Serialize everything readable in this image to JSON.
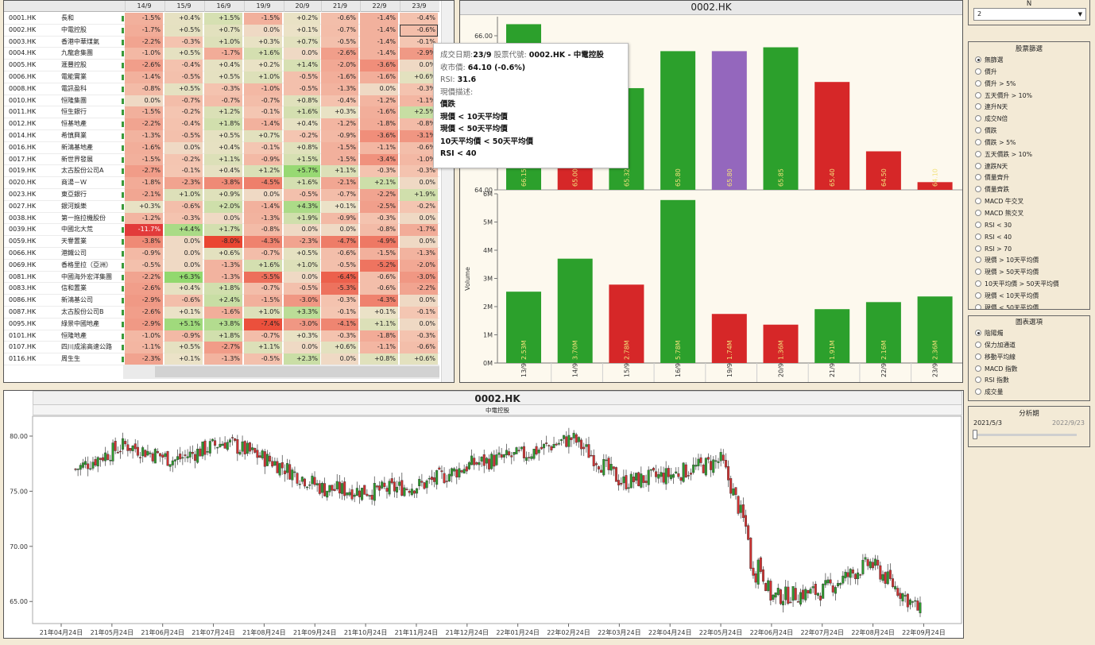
{
  "table": {
    "dates": [
      "14/9",
      "15/9",
      "16/9",
      "19/9",
      "20/9",
      "21/9",
      "22/9",
      "23/9"
    ],
    "rows": [
      {
        "code": "0001.HK",
        "name": "長和",
        "changes": [
          "-1.5%",
          "+0.4%",
          "+1.5%",
          "-1.5%",
          "+0.2%",
          "-0.6%",
          "-1.4%",
          "-0.4%"
        ]
      },
      {
        "code": "0002.HK",
        "name": "中電控股",
        "changes": [
          "-1.7%",
          "+0.5%",
          "+0.7%",
          "0.0%",
          "+0.1%",
          "-0.7%",
          "-1.4%",
          "-0.6%"
        ]
      },
      {
        "code": "0003.HK",
        "name": "香港中華煤氣",
        "changes": [
          "-2.2%",
          "-0.3%",
          "+1.0%",
          "+0.3%",
          "+0.7%",
          "-0.5%",
          "-1.4%",
          "-0.1%"
        ]
      },
      {
        "code": "0004.HK",
        "name": "九龍倉集團",
        "changes": [
          "-1.0%",
          "+0.5%",
          "-1.7%",
          "+1.6%",
          "0.0%",
          "-2.6%",
          "-1.4%",
          "-2.9%"
        ]
      },
      {
        "code": "0005.HK",
        "name": "滙豐控股",
        "changes": [
          "-2.6%",
          "-0.4%",
          "+0.4%",
          "+0.2%",
          "+1.4%",
          "-2.0%",
          "-3.6%",
          "0.0%"
        ]
      },
      {
        "code": "0006.HK",
        "name": "電能實業",
        "changes": [
          "-1.4%",
          "-0.5%",
          "+0.5%",
          "+1.0%",
          "-0.5%",
          "-1.6%",
          "-1.6%",
          "+0.6%"
        ]
      },
      {
        "code": "0008.HK",
        "name": "電訊盈科",
        "changes": [
          "-0.8%",
          "+0.5%",
          "-0.3%",
          "-1.0%",
          "-0.5%",
          "-1.3%",
          "0.0%",
          "-0.3%"
        ]
      },
      {
        "code": "0010.HK",
        "name": "恒隆集團",
        "changes": [
          "0.0%",
          "-0.7%",
          "-0.7%",
          "-0.7%",
          "+0.8%",
          "-0.4%",
          "-1.2%",
          "-1.1%"
        ]
      },
      {
        "code": "0011.HK",
        "name": "恒生銀行",
        "changes": [
          "-1.5%",
          "-0.2%",
          "+1.2%",
          "-0.1%",
          "+1.6%",
          "+0.3%",
          "-1.6%",
          "+2.5%"
        ]
      },
      {
        "code": "0012.HK",
        "name": "恒基地產",
        "changes": [
          "-2.2%",
          "-0.4%",
          "+1.8%",
          "-1.4%",
          "+0.4%",
          "-1.2%",
          "-1.8%",
          "-0.8%"
        ]
      },
      {
        "code": "0014.HK",
        "name": "希慎興業",
        "changes": [
          "-1.3%",
          "-0.5%",
          "+0.5%",
          "+0.7%",
          "-0.2%",
          "-0.9%",
          "-3.6%",
          "-3.1%"
        ]
      },
      {
        "code": "0016.HK",
        "name": "新鴻基地產",
        "changes": [
          "-1.6%",
          "0.0%",
          "+0.4%",
          "-0.1%",
          "+0.8%",
          "-1.5%",
          "-1.1%",
          "-0.6%"
        ]
      },
      {
        "code": "0017.HK",
        "name": "新世界發展",
        "changes": [
          "-1.5%",
          "-0.2%",
          "+1.1%",
          "-0.9%",
          "+1.5%",
          "-1.5%",
          "-3.4%",
          "-1.0%"
        ]
      },
      {
        "code": "0019.HK",
        "name": "太古股份公司A",
        "changes": [
          "-2.7%",
          "-0.1%",
          "+0.4%",
          "+1.2%",
          "+5.7%",
          "+1.1%",
          "-0.3%",
          "-0.3%"
        ]
      },
      {
        "code": "0020.HK",
        "name": "商湯－Ｗ",
        "changes": [
          "-1.8%",
          "-2.3%",
          "-3.8%",
          "-4.5%",
          "+1.6%",
          "-2.1%",
          "+2.1%",
          "0.0%"
        ]
      },
      {
        "code": "0023.HK",
        "name": "東亞銀行",
        "changes": [
          "-2.1%",
          "+1.0%",
          "+0.9%",
          "0.0%",
          "-0.5%",
          "-0.7%",
          "-2.2%",
          "+1.9%"
        ]
      },
      {
        "code": "0027.HK",
        "name": "銀河娛樂",
        "changes": [
          "+0.3%",
          "-0.6%",
          "+2.0%",
          "-1.4%",
          "+4.3%",
          "+0.1%",
          "-2.5%",
          "-0.2%"
        ]
      },
      {
        "code": "0038.HK",
        "name": "第一拖拉機股份",
        "changes": [
          "-1.2%",
          "-0.3%",
          "0.0%",
          "-1.3%",
          "+1.9%",
          "-0.9%",
          "-0.3%",
          "0.0%"
        ]
      },
      {
        "code": "0039.HK",
        "name": "中國北大荒",
        "changes": [
          "-11.7%",
          "+4.4%",
          "+1.7%",
          "-0.8%",
          "0.0%",
          "0.0%",
          "-0.8%",
          "-1.7%"
        ]
      },
      {
        "code": "0059.HK",
        "name": "天譽置業",
        "changes": [
          "-3.8%",
          "0.0%",
          "-8.0%",
          "-4.3%",
          "-2.3%",
          "-4.7%",
          "-4.9%",
          "0.0%"
        ]
      },
      {
        "code": "0066.HK",
        "name": "港鐵公司",
        "changes": [
          "-0.9%",
          "0.0%",
          "+0.6%",
          "-0.7%",
          "+0.5%",
          "-0.6%",
          "-1.5%",
          "-1.3%"
        ]
      },
      {
        "code": "0069.HK",
        "name": "香格里拉（亞洲）",
        "changes": [
          "-0.5%",
          "0.0%",
          "-1.3%",
          "+1.6%",
          "+1.0%",
          "-0.5%",
          "-5.2%",
          "-2.0%"
        ]
      },
      {
        "code": "0081.HK",
        "name": "中國海外宏洋集團",
        "changes": [
          "-2.2%",
          "+6.3%",
          "-1.3%",
          "-5.5%",
          "0.0%",
          "-6.4%",
          "-0.6%",
          "-3.0%"
        ]
      },
      {
        "code": "0083.HK",
        "name": "信和置業",
        "changes": [
          "-2.6%",
          "+0.4%",
          "+1.8%",
          "-0.7%",
          "-0.5%",
          "-5.3%",
          "-0.6%",
          "-2.2%"
        ]
      },
      {
        "code": "0086.HK",
        "name": "新鴻基公司",
        "changes": [
          "-2.9%",
          "-0.6%",
          "+2.4%",
          "-1.5%",
          "-3.0%",
          "-0.3%",
          "-4.3%",
          "0.0%"
        ]
      },
      {
        "code": "0087.HK",
        "name": "太古股份公司B",
        "changes": [
          "-2.6%",
          "+0.1%",
          "-1.6%",
          "+1.0%",
          "+3.3%",
          "-0.1%",
          "+0.1%",
          "-0.1%"
        ]
      },
      {
        "code": "0095.HK",
        "name": "綠景中國地產",
        "changes": [
          "-2.9%",
          "+5.1%",
          "+3.8%",
          "-7.4%",
          "-3.0%",
          "-4.1%",
          "+1.1%",
          "0.0%"
        ]
      },
      {
        "code": "0101.HK",
        "name": "恒隆地產",
        "changes": [
          "-1.0%",
          "-0.9%",
          "+1.8%",
          "-0.7%",
          "+0.3%",
          "-0.3%",
          "-1.8%",
          "-0.3%"
        ]
      },
      {
        "code": "0107.HK",
        "name": "四川成渝高速公路",
        "changes": [
          "-1.1%",
          "+0.5%",
          "-2.7%",
          "+1.1%",
          "0.0%",
          "+0.6%",
          "-1.1%",
          "-0.6%"
        ]
      },
      {
        "code": "0116.HK",
        "name": "周生生",
        "changes": [
          "-2.3%",
          "+0.1%",
          "-1.3%",
          "-0.5%",
          "+2.3%",
          "0.0%",
          "+0.8%",
          "+0.6%"
        ]
      }
    ]
  },
  "bar_chart": {
    "title": "0002.HK",
    "volume_axis_label": "Volume",
    "price_ticks": [
      "66.00",
      "64.00"
    ],
    "volume_ticks": [
      "6M",
      "5M",
      "4M",
      "3M",
      "2M",
      "1M",
      "0M"
    ]
  },
  "tooltip": {
    "date_label": "成交日期:",
    "date_value": "23/9",
    "code_label": "股票代號:",
    "code_value": "0002.HK - 中電控股",
    "close_label": "收市價:",
    "close_value": "64.10 (-0.6%)",
    "rsi_label": "RSI:",
    "rsi_value": "31.6",
    "desc_label": "現價描述:",
    "desc_lines": [
      "價跌",
      "現價 < 10天平均價",
      "現價 < 50天平均價",
      "10天平均價 < 50天平均價",
      "RSI < 40"
    ]
  },
  "candle_chart": {
    "title": "0002.HK",
    "subtitle": "中電控股",
    "y_ticks": [
      "80.00",
      "75.00",
      "70.00",
      "65.00"
    ],
    "x_labels": [
      "21年04月24日",
      "21年05月24日",
      "21年06月24日",
      "21年07月24日",
      "21年08月24日",
      "21年09月24日",
      "21年10月24日",
      "21年11月24日",
      "21年12月24日",
      "22年01月24日",
      "22年02月24日",
      "22年03月24日",
      "22年04月24日",
      "22年05月24日",
      "22年06月24日",
      "22年07月24日",
      "22年08月24日",
      "22年09月24日"
    ]
  },
  "chart_data": [
    {
      "type": "bar",
      "title": "0002.HK",
      "categories": [
        "13/9",
        "14/9",
        "15/9",
        "16/9",
        "19/9",
        "20/9",
        "21/9",
        "22/9",
        "23/9"
      ],
      "series": [
        {
          "name": "Close",
          "values": [
            66.15,
            65.0,
            65.32,
            65.8,
            65.8,
            65.85,
            65.4,
            64.5,
            64.1
          ],
          "labels": [
            "66.15",
            "65.00",
            "65.32",
            "65.80",
            "65.80",
            "65.85",
            "65.40",
            "64.50",
            "64.10"
          ],
          "colors": [
            "#2ca02c",
            "#d62728",
            "#2ca02c",
            "#2ca02c",
            "#9467bd",
            "#2ca02c",
            "#d62728",
            "#d62728",
            "#d62728"
          ]
        },
        {
          "name": "Volume",
          "values": [
            2.53,
            3.7,
            2.78,
            5.78,
            1.74,
            1.36,
            1.91,
            2.16,
            2.36
          ],
          "labels": [
            "2.53M",
            "3.70M",
            "2.78M",
            "5.78M",
            "1.74M",
            "1.36M",
            "1.91M",
            "2.16M",
            "2.36M"
          ],
          "colors": [
            "#2ca02c",
            "#2ca02c",
            "#d62728",
            "#2ca02c",
            "#d62728",
            "#d62728",
            "#2ca02c",
            "#2ca02c",
            "#2ca02c"
          ]
        }
      ],
      "price_ylim": [
        64.0,
        66.0
      ],
      "volume_ylim": [
        0,
        6
      ],
      "ylabel_volume": "Volume"
    },
    {
      "type": "line",
      "title": "0002.HK",
      "subtitle": "中電控股",
      "x": [
        "21年04月24日",
        "21年05月24日",
        "21年06月24日",
        "21年07月24日",
        "21年08月24日",
        "21年09月24日",
        "21年10月24日",
        "21年11月24日",
        "21年12月24日",
        "22年01月24日",
        "22年02月24日",
        "22年03月24日",
        "22年04月24日",
        "22年05月24日",
        "22年06月24日",
        "22年07月24日",
        "22年08月24日",
        "22年09月24日"
      ],
      "series": [
        {
          "name": "Close",
          "values": [
            77.0,
            79.2,
            77.8,
            79.5,
            77.6,
            75.2,
            75.0,
            75.6,
            77.5,
            78.3,
            79.8,
            75.8,
            76.5,
            77.8,
            65.4,
            65.9,
            68.5,
            64.1
          ]
        }
      ],
      "ylim": [
        63.0,
        81.8
      ]
    }
  ],
  "controls": {
    "n_label": "N",
    "n_value": "2",
    "stock_filter": {
      "title": "股票篩選",
      "options": [
        "無篩選",
        "價升",
        "價升 > 5%",
        "五天價升 > 10%",
        "連升N天",
        "成交N倍",
        "價跌",
        "價跌 > 5%",
        "五天價跌 > 10%",
        "連跌N天",
        "價量齊升",
        "價量齊跌",
        "MACD 牛交叉",
        "MACD 熊交叉",
        "RSI < 30",
        "RSI < 40",
        "RSI > 70",
        "現價 > 10天平均價",
        "現價 > 50天平均價",
        "10天平均價 > 50天平均價",
        "現價 < 10天平均價",
        "現價 < 50天平均價"
      ],
      "selected": "無篩選"
    },
    "chart_options": {
      "title": "圖表選項",
      "options": [
        "陰陽燭",
        "保力加通道",
        "移動平均線",
        "MACD 指數",
        "RSI 指數",
        "成交量"
      ],
      "selected": "陰陽燭"
    },
    "period": {
      "title": "分析期",
      "start": "2021/5/3",
      "end": "2022/9/23"
    }
  }
}
